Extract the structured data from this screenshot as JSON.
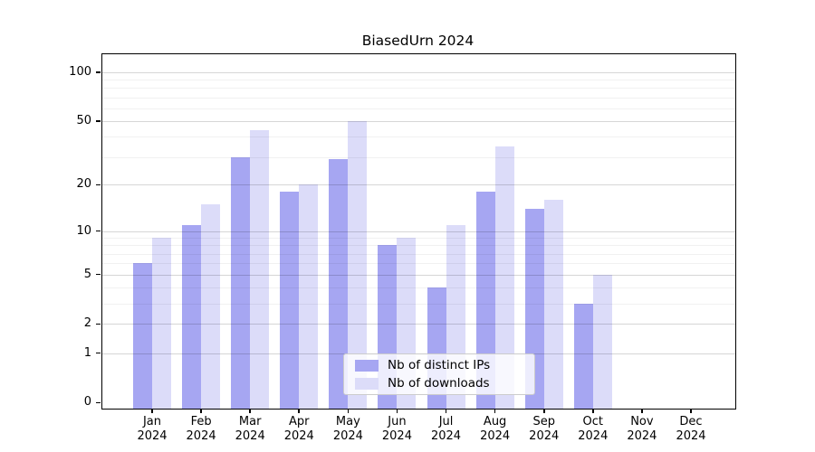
{
  "chart_data": {
    "type": "bar",
    "title": "BiasedUrn 2024",
    "categories": [
      "Jan 2024",
      "Feb 2024",
      "Mar 2024",
      "Apr 2024",
      "May 2024",
      "Jun 2024",
      "Jul 2024",
      "Aug 2024",
      "Sep 2024",
      "Oct 2024",
      "Nov 2024",
      "Dec 2024"
    ],
    "series": [
      {
        "name": "Nb of distinct IPs",
        "color": "#a6a6f2",
        "values": [
          6,
          11,
          30,
          18,
          29,
          8,
          4,
          18,
          14,
          3,
          0,
          0
        ]
      },
      {
        "name": "Nb of downloads",
        "color": "#dcdcf9",
        "values": [
          9,
          15,
          44,
          20,
          50,
          9,
          11,
          35,
          16,
          5,
          0,
          0
        ]
      }
    ],
    "xlabel": "",
    "ylabel": "",
    "y_ticks": [
      0,
      1,
      2,
      5,
      10,
      20,
      50,
      100
    ],
    "y_minor_gridlines": [
      3,
      4,
      6,
      7,
      8,
      9,
      30,
      40,
      60,
      70,
      80,
      90
    ],
    "y_scale": "log10(value+1)",
    "ylim": [
      0,
      129
    ],
    "grid": "horizontal",
    "legend_position": "lower center"
  }
}
